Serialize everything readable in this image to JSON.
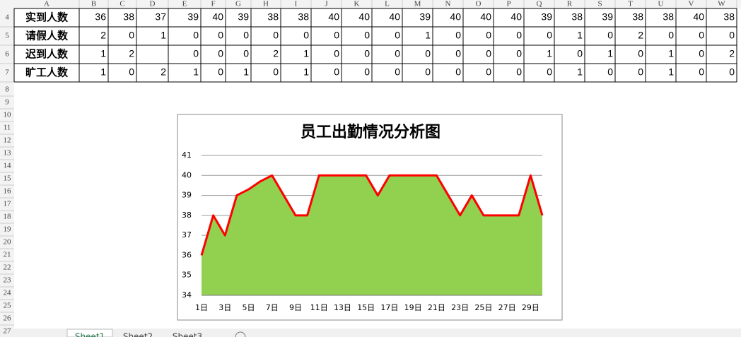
{
  "sheet": {
    "columns": [
      "A",
      "B",
      "C",
      "D",
      "E",
      "F",
      "G",
      "H",
      "I",
      "J",
      "K",
      "L",
      "M",
      "N",
      "O",
      "P",
      "Q",
      "R",
      "S",
      "T",
      "U",
      "V",
      "W"
    ],
    "row_numbers": [
      "4",
      "5",
      "6",
      "7",
      "8",
      "9",
      "10",
      "11",
      "12",
      "13",
      "14",
      "15",
      "16",
      "17",
      "18",
      "19",
      "20",
      "21",
      "22",
      "23",
      "24",
      "25",
      "26",
      "27"
    ],
    "rows": [
      {
        "label": "实到人数",
        "values": [
          36,
          38,
          37,
          39,
          40,
          39,
          38,
          38,
          40,
          40,
          40,
          39,
          40,
          40,
          40,
          39,
          38,
          39,
          38,
          38,
          40,
          38
        ]
      },
      {
        "label": "请假人数",
        "values": [
          2,
          0,
          1,
          0,
          0,
          0,
          0,
          0,
          0,
          0,
          0,
          1,
          0,
          0,
          0,
          0,
          1,
          0,
          2,
          0,
          0,
          0
        ]
      },
      {
        "label": "迟到人数",
        "values": [
          1,
          2,
          null,
          0,
          0,
          0,
          2,
          1,
          0,
          0,
          0,
          0,
          0,
          0,
          0,
          1,
          0,
          1,
          0,
          1,
          0,
          2
        ]
      },
      {
        "label": "旷工人数",
        "values": [
          1,
          0,
          2,
          1,
          0,
          1,
          0,
          1,
          0,
          0,
          0,
          0,
          0,
          0,
          0,
          0,
          1,
          0,
          0,
          1,
          0,
          0
        ]
      }
    ]
  },
  "chart_data": {
    "type": "area",
    "title": "员工出勤情况分析图",
    "categories": [
      "1日",
      null,
      "3日",
      null,
      "5日",
      null,
      "7日",
      null,
      "9日",
      null,
      "11日",
      null,
      "13日",
      null,
      "15日",
      null,
      "17日",
      null,
      "19日",
      null,
      "21日",
      null,
      "23日",
      null,
      "25日",
      null,
      "27日",
      null,
      "29日",
      null
    ],
    "values": [
      36,
      38,
      37,
      39,
      39.3,
      39.7,
      40,
      39,
      38,
      38,
      40,
      40,
      40,
      40,
      40,
      39,
      40,
      40,
      40,
      40,
      40,
      39,
      38,
      39,
      38,
      38,
      38,
      38,
      40,
      38
    ],
    "color": "#92d050",
    "line_color": "#ff0000",
    "ylim": [
      34,
      41
    ],
    "yticks": [
      34,
      35,
      36,
      37,
      38,
      39,
      40,
      41
    ],
    "grid": true
  },
  "tabs": [
    "Sheet1",
    "Sheet2",
    "Sheet3"
  ]
}
